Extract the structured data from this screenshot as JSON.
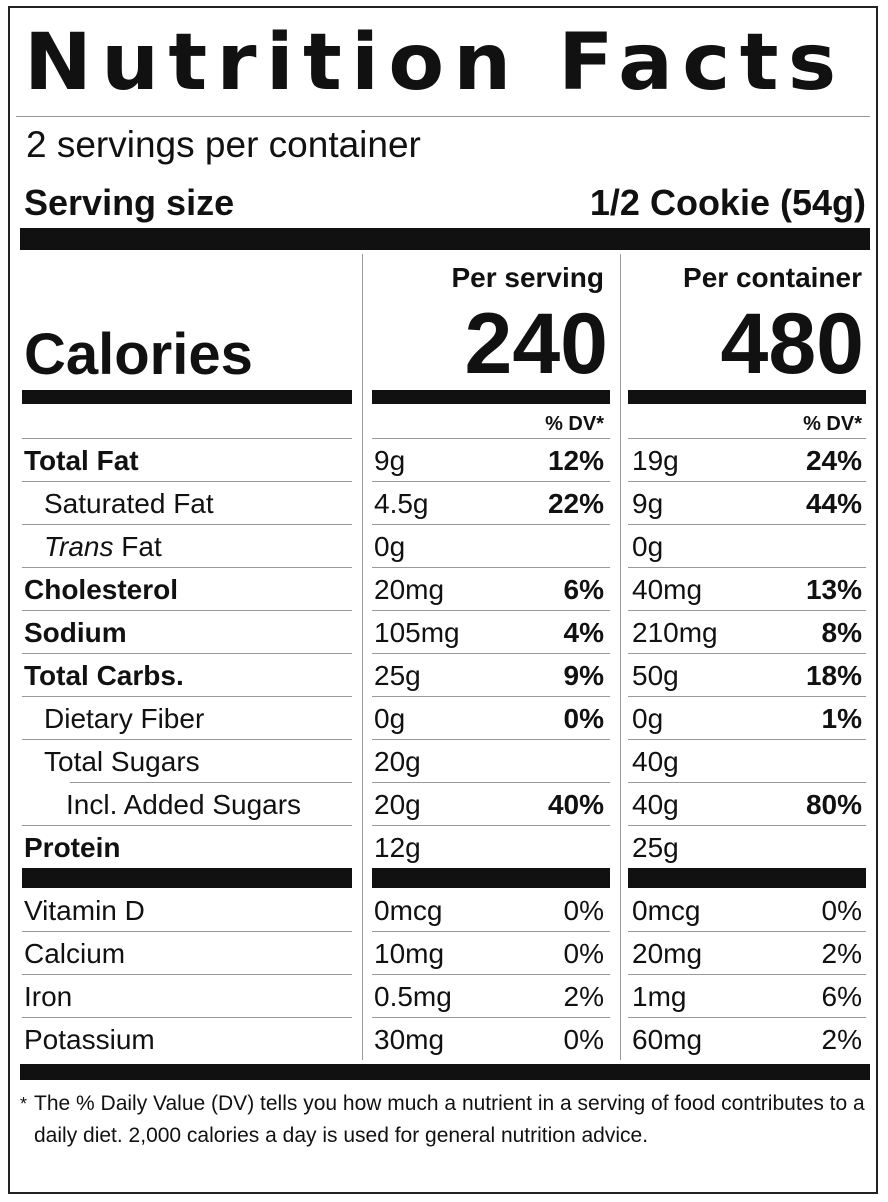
{
  "title": "Nutrition Facts",
  "servings_per_container": "2 servings per container",
  "serving_size_label": "Serving size",
  "serving_size_value": "1/2 Cookie (54g)",
  "columns": {
    "per_serving_label": "Per serving",
    "per_container_label": "Per container",
    "dv_label": "% DV*"
  },
  "calories": {
    "label": "Calories",
    "per_serving": "240",
    "per_container": "480"
  },
  "nutrients": [
    {
      "name": "Total Fat",
      "serving_amt": "9g",
      "serving_dv": "12%",
      "container_amt": "19g",
      "container_dv": "24%"
    },
    {
      "name": "Saturated Fat",
      "serving_amt": "4.5g",
      "serving_dv": "22%",
      "container_amt": "9g",
      "container_dv": "44%"
    },
    {
      "name_italic": "Trans",
      "name_rest": " Fat",
      "serving_amt": "0g",
      "serving_dv": "",
      "container_amt": "0g",
      "container_dv": ""
    },
    {
      "name": "Cholesterol",
      "serving_amt": "20mg",
      "serving_dv": "6%",
      "container_amt": "40mg",
      "container_dv": "13%"
    },
    {
      "name": "Sodium",
      "serving_amt": "105mg",
      "serving_dv": "4%",
      "container_amt": "210mg",
      "container_dv": "8%"
    },
    {
      "name": "Total Carbs.",
      "serving_amt": "25g",
      "serving_dv": "9%",
      "container_amt": "50g",
      "container_dv": "18%"
    },
    {
      "name": "Dietary Fiber",
      "serving_amt": "0g",
      "serving_dv": "0%",
      "container_amt": "0g",
      "container_dv": "1%"
    },
    {
      "name": "Total Sugars",
      "serving_amt": "20g",
      "serving_dv": "",
      "container_amt": "40g",
      "container_dv": ""
    },
    {
      "name": "Incl. Added Sugars",
      "serving_amt": "20g",
      "serving_dv": "40%",
      "container_amt": "40g",
      "container_dv": "80%"
    },
    {
      "name": "Protein",
      "serving_amt": "12g",
      "serving_dv": "",
      "container_amt": "25g",
      "container_dv": ""
    }
  ],
  "vitamins": [
    {
      "name": "Vitamin D",
      "serving_amt": "0mcg",
      "serving_dv": "0%",
      "container_amt": "0mcg",
      "container_dv": "0%"
    },
    {
      "name": "Calcium",
      "serving_amt": "10mg",
      "serving_dv": "0%",
      "container_amt": "20mg",
      "container_dv": "2%"
    },
    {
      "name": "Iron",
      "serving_amt": "0.5mg",
      "serving_dv": "2%",
      "container_amt": "1mg",
      "container_dv": "6%"
    },
    {
      "name": "Potassium",
      "serving_amt": "30mg",
      "serving_dv": "0%",
      "container_amt": "60mg",
      "container_dv": "2%"
    }
  ],
  "footnote": {
    "asterisk": "*",
    "text": "The % Daily Value (DV) tells you how much a nutrient in a serving of food contributes to a daily diet. 2,000 calories a day is used for general nutrition advice."
  }
}
